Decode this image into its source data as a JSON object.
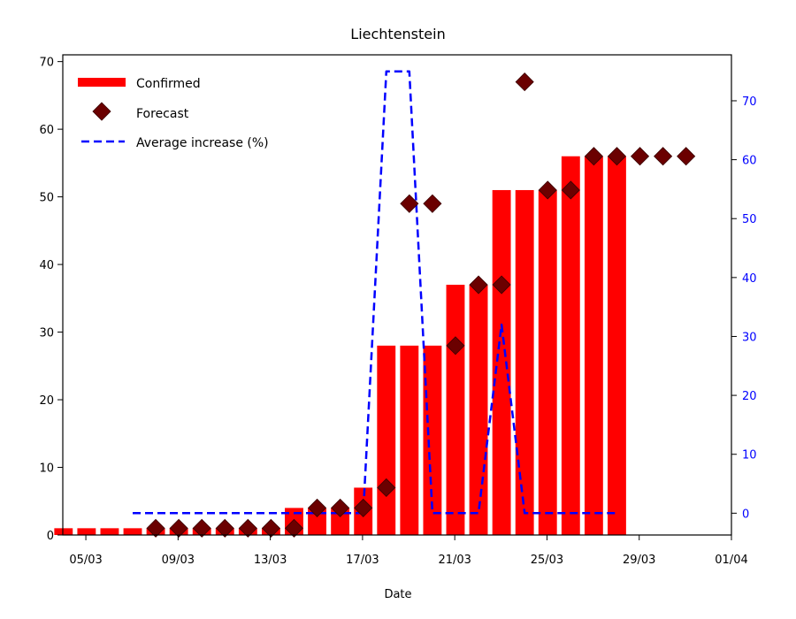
{
  "chart_data": {
    "type": "bar",
    "title": "Liechtenstein",
    "xlabel": "Date",
    "ylabel": "",
    "ylabel_right": "",
    "xlim": [
      4,
      33
    ],
    "ylim": [
      0,
      71
    ],
    "ylim_right": [
      -3.7,
      77.8
    ],
    "x_ticks": [
      {
        "x": 5,
        "label": "05/03"
      },
      {
        "x": 9,
        "label": "09/03"
      },
      {
        "x": 13,
        "label": "13/03"
      },
      {
        "x": 17,
        "label": "17/03"
      },
      {
        "x": 21,
        "label": "21/03"
      },
      {
        "x": 25,
        "label": "25/03"
      },
      {
        "x": 29,
        "label": "29/03"
      },
      {
        "x": 33,
        "label": "01/04"
      }
    ],
    "y_ticks_left": [
      0,
      10,
      20,
      30,
      40,
      50,
      60,
      70
    ],
    "y_ticks_right": [
      0,
      10,
      20,
      30,
      40,
      50,
      60,
      70
    ],
    "legend_position": "top-left",
    "colors": {
      "confirmed": "#ff0000",
      "forecast": "#6b0000",
      "average": "#0000ff"
    },
    "series": [
      {
        "name": "Confirmed",
        "kind": "bar",
        "axis": "left",
        "x": [
          4,
          5,
          6,
          7,
          8,
          9,
          10,
          11,
          12,
          13,
          14,
          15,
          16,
          17,
          18,
          19,
          20,
          21,
          22,
          23,
          24,
          25,
          26,
          27,
          28
        ],
        "values": [
          1,
          1,
          1,
          1,
          1,
          1,
          1,
          1,
          1,
          1,
          4,
          4,
          4,
          7,
          28,
          28,
          28,
          37,
          37,
          51,
          51,
          51,
          56,
          56,
          56
        ]
      },
      {
        "name": "Forecast",
        "kind": "scatter",
        "axis": "left",
        "x": [
          8,
          9,
          10,
          11,
          12,
          13,
          14,
          15,
          16,
          17,
          18,
          19,
          20,
          21,
          22,
          23,
          24,
          25,
          26,
          27,
          28,
          29,
          30,
          31
        ],
        "values": [
          1,
          1,
          1,
          1,
          1,
          1,
          1,
          4,
          4,
          4,
          7,
          49,
          49,
          28,
          37,
          37,
          67,
          51,
          51,
          56,
          56,
          56,
          56,
          56
        ]
      },
      {
        "name": "Average increase (%)",
        "kind": "line",
        "axis": "right",
        "x": [
          7,
          8,
          9,
          10,
          11,
          12,
          13,
          14,
          15,
          16,
          17,
          18,
          19,
          20,
          21,
          22,
          23,
          24,
          25,
          26,
          27,
          28
        ],
        "values": [
          0,
          0,
          0,
          0,
          0,
          0,
          0,
          0,
          0,
          0,
          0,
          75,
          75,
          0,
          0,
          0,
          32,
          0,
          0,
          0,
          0,
          0
        ]
      }
    ]
  }
}
